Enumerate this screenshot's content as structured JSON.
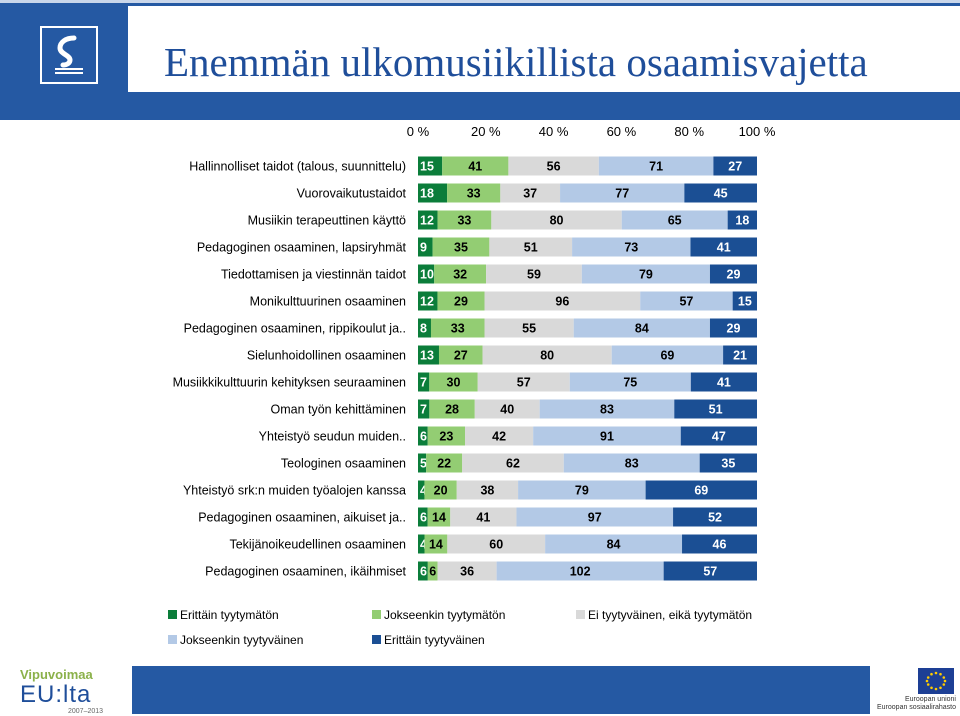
{
  "slide": {
    "title": "Enemmän ulkomusiikillista osaamisvajetta"
  },
  "footer": {
    "vipuvoimaa": "Vipuvoimaa",
    "eulta": "EU:lta",
    "years": "2007–2013",
    "eu_union": "Euroopan unioni",
    "eu_fund": "Euroopan sosiaalirahasto"
  },
  "colors": {
    "header": "#2559a3",
    "series": [
      "#0b7d3a",
      "#93cd73",
      "#d9d9d9",
      "#b3c9e6",
      "#1b4f94"
    ],
    "label": [
      "#ffffff",
      "#000000",
      "#000000",
      "#000000",
      "#ffffff"
    ]
  },
  "chart_data": {
    "type": "bar",
    "orientation": "horizontal",
    "stacking": "percent",
    "x_ticks": [
      "0 %",
      "20 %",
      "40 %",
      "60 %",
      "80 %",
      "100 %"
    ],
    "categories": [
      "Hallinnolliset taidot (talous, suunnittelu)",
      "Vuorovaikutustaidot",
      "Musiikin terapeuttinen käyttö",
      "Pedagoginen osaaminen, lapsiryhmät",
      "Tiedottamisen ja viestinnän taidot",
      "Monikulttuurinen osaaminen",
      "Pedagoginen osaaminen, rippikoulut ja..",
      "Sielunhoidollinen osaaminen",
      "Musiikkikulttuurin kehityksen seuraaminen",
      "Oman työn kehittäminen",
      "Yhteistyö seudun muiden..",
      "Teologinen osaaminen",
      "Yhteistyö srk:n muiden työalojen kanssa",
      "Pedagoginen osaaminen, aikuiset ja..",
      "Tekijänoikeudellinen osaaminen",
      "Pedagoginen osaaminen, ikäihmiset"
    ],
    "series": [
      {
        "name": "Erittäin tyytymätön",
        "values": [
          15,
          18,
          12,
          9,
          10,
          12,
          8,
          13,
          7,
          7,
          6,
          5,
          4,
          6,
          4,
          6
        ]
      },
      {
        "name": "Jokseenkin tyytymätön",
        "values": [
          41,
          33,
          33,
          35,
          32,
          29,
          33,
          27,
          30,
          28,
          23,
          22,
          20,
          14,
          14,
          6
        ]
      },
      {
        "name": "Ei tyytyväinen, eikä tyytymätön",
        "values": [
          56,
          37,
          80,
          51,
          59,
          96,
          55,
          80,
          57,
          40,
          42,
          62,
          38,
          41,
          60,
          36
        ]
      },
      {
        "name": "Jokseenkin tyytyväinen",
        "values": [
          71,
          77,
          65,
          73,
          79,
          57,
          84,
          69,
          75,
          83,
          91,
          83,
          79,
          97,
          84,
          102
        ]
      },
      {
        "name": "Erittäin tyytyväinen",
        "values": [
          27,
          45,
          18,
          41,
          29,
          15,
          29,
          21,
          41,
          51,
          47,
          35,
          69,
          52,
          46,
          57
        ]
      }
    ],
    "legend_position": "bottom"
  }
}
